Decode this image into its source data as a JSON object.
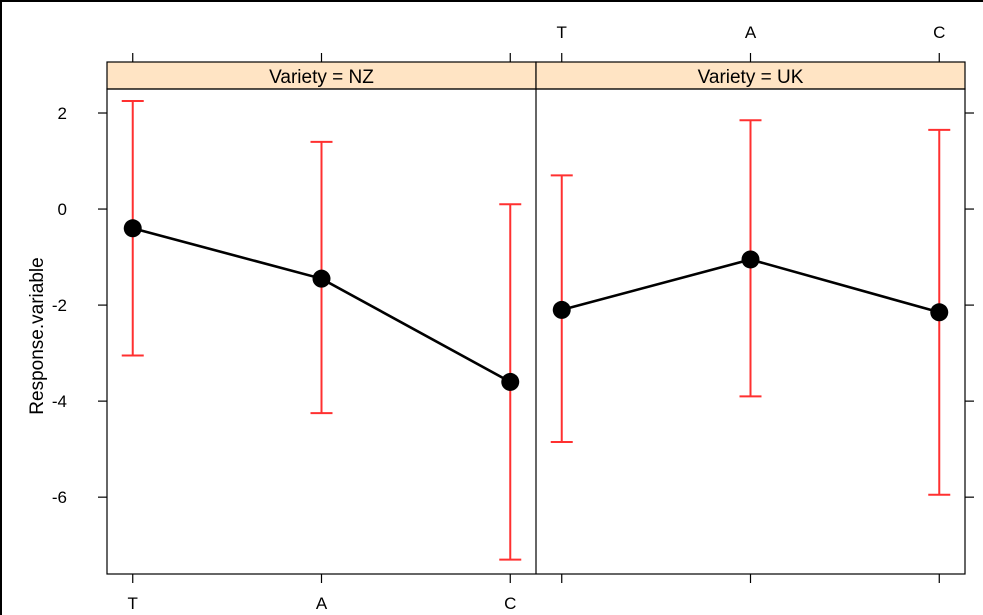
{
  "chart_data": {
    "type": "line",
    "ylabel": "Response.variable",
    "ylim": [
      -7.6,
      2.5
    ],
    "yticks": [
      2,
      0,
      -2,
      -4,
      -6
    ],
    "categories": [
      "T",
      "A",
      "C"
    ],
    "grid": false,
    "panels": [
      {
        "strip_label": "Variety = NZ",
        "values": [
          -0.4,
          -1.45,
          -3.6
        ],
        "upper": [
          2.25,
          1.4,
          0.1
        ],
        "lower": [
          -3.05,
          -4.25,
          -7.3
        ]
      },
      {
        "strip_label": "Variety = UK",
        "values": [
          -2.1,
          -1.05,
          -2.15
        ],
        "upper": [
          0.7,
          1.85,
          1.65
        ],
        "lower": [
          -4.85,
          -3.9,
          -5.95
        ]
      }
    ],
    "colors": {
      "strip": "#ffe4c4",
      "errorbar": "#ff3030",
      "line": "#000000",
      "point": "#000000"
    }
  }
}
